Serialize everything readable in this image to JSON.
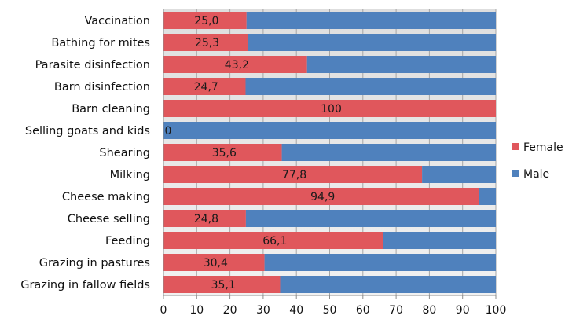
{
  "chart_data": {
    "type": "bar",
    "orientation": "horizontal",
    "stacked": "percent",
    "categories": [
      "Vaccination",
      "Bathing for mites",
      "Parasite disinfection",
      "Barn disinfection",
      "Barn cleaning",
      "Selling goats and kids",
      "Shearing",
      "Milking",
      "Cheese making",
      "Cheese selling",
      "Feeding",
      "Grazing in pastures",
      "Grazing in fallow fields"
    ],
    "value_labels": [
      "25,0",
      "25,3",
      "43,2",
      "24,7",
      "100",
      "0",
      "35,6",
      "77,8",
      "94,9",
      "24,8",
      "66,1",
      "30,4",
      "35,1"
    ],
    "series": [
      {
        "name": "Female",
        "color": "#e0575c",
        "values": [
          25.0,
          25.3,
          43.2,
          24.7,
          100,
          0,
          35.6,
          77.8,
          94.9,
          24.8,
          66.1,
          30.4,
          35.1
        ]
      },
      {
        "name": "Male",
        "color": "#4f81bd",
        "values": [
          75.0,
          74.7,
          56.8,
          75.3,
          0,
          100,
          64.4,
          22.2,
          5.1,
          75.2,
          33.9,
          69.6,
          64.9
        ]
      }
    ],
    "xlim": [
      0,
      100
    ],
    "xticks": [
      0,
      10,
      20,
      30,
      40,
      50,
      60,
      70,
      80,
      90,
      100
    ],
    "grid": true,
    "legend_position": "right"
  }
}
